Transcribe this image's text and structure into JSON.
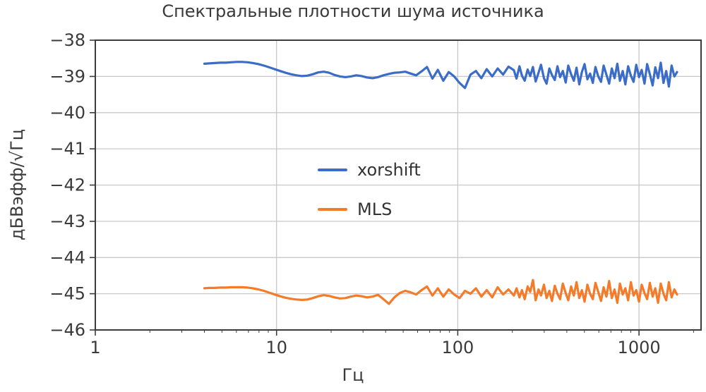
{
  "chart_data": {
    "type": "line",
    "title": "Спектральные плотности шума источника",
    "xlabel": "Гц",
    "ylabel": "дБВэфф/√Гц",
    "xscale": "log",
    "xlim": [
      1,
      2200
    ],
    "ylim": [
      -46,
      -38
    ],
    "grid": true,
    "legend_position": "center",
    "xticks": [
      1,
      10,
      100,
      1000
    ],
    "xtick_labels": [
      "1",
      "10",
      "100",
      "1000"
    ],
    "yticks": [
      -38,
      -39,
      -40,
      -41,
      -42,
      -43,
      -44,
      -45,
      -46
    ],
    "ytick_labels": [
      "−38",
      "−39",
      "−40",
      "−41",
      "−42",
      "−43",
      "−44",
      "−45",
      "−46"
    ],
    "colors": {
      "text": "#3a3a3a",
      "grid": "#c8c8c8",
      "spine": "#3c3c3c",
      "background": "#ffffff"
    },
    "x": [
      4.0,
      4.27,
      4.57,
      4.9,
      5.25,
      5.62,
      6.03,
      6.46,
      6.92,
      7.41,
      7.94,
      8.51,
      9.12,
      9.77,
      10.47,
      11.22,
      12.02,
      12.88,
      13.8,
      14.79,
      15.85,
      16.98,
      18.2,
      19.5,
      20.89,
      22.39,
      23.99,
      25.7,
      27.54,
      29.51,
      31.62,
      33.88,
      36.31,
      38.9,
      41.69,
      44.67,
      47.86,
      51.29,
      54.95,
      58.88,
      63.1,
      67.61,
      72.44,
      77.62,
      83.18,
      89.13,
      95.5,
      102.3,
      109.6,
      117.5,
      125.9,
      134.9,
      144.5,
      154.9,
      166,
      177.8,
      190.5,
      204,
      211,
      219,
      226,
      234,
      243,
      251,
      260,
      269,
      279,
      288,
      299,
      309,
      320,
      331,
      343,
      355,
      367,
      380,
      394,
      407,
      422,
      437,
      452,
      468,
      484,
      501,
      519,
      537,
      556,
      575,
      596,
      617,
      638,
      661,
      684,
      708,
      733,
      759,
      785,
      813,
      841,
      871,
      902,
      933,
      966,
      1000,
      1035,
      1072,
      1109,
      1148,
      1189,
      1230,
      1274,
      1318,
      1365,
      1413,
      1462,
      1514,
      1567,
      1622
    ],
    "series": [
      {
        "name": "xorshift",
        "color": "#3a6cc8",
        "values": [
          -38.65,
          -38.64,
          -38.63,
          -38.62,
          -38.62,
          -38.61,
          -38.6,
          -38.6,
          -38.61,
          -38.63,
          -38.66,
          -38.7,
          -38.75,
          -38.8,
          -38.85,
          -38.9,
          -38.94,
          -38.97,
          -38.99,
          -38.98,
          -38.94,
          -38.89,
          -38.87,
          -38.9,
          -38.96,
          -39.0,
          -39.02,
          -39.0,
          -38.97,
          -38.99,
          -39.03,
          -39.05,
          -39.02,
          -38.97,
          -38.93,
          -38.9,
          -38.89,
          -38.87,
          -38.92,
          -38.97,
          -38.86,
          -38.74,
          -39.06,
          -38.82,
          -39.12,
          -38.88,
          -39.0,
          -39.18,
          -39.32,
          -38.95,
          -38.85,
          -39.05,
          -38.8,
          -39.0,
          -38.78,
          -38.95,
          -38.73,
          -38.83,
          -39.06,
          -38.72,
          -38.98,
          -39.12,
          -38.81,
          -38.99,
          -38.74,
          -39.14,
          -38.9,
          -38.68,
          -39.05,
          -39.2,
          -38.78,
          -38.96,
          -39.1,
          -38.72,
          -39.02,
          -38.85,
          -39.17,
          -38.7,
          -38.94,
          -39.12,
          -38.76,
          -39.22,
          -38.88,
          -38.66,
          -39.08,
          -38.92,
          -39.18,
          -38.74,
          -39.0,
          -39.15,
          -38.7,
          -38.95,
          -39.2,
          -38.78,
          -39.05,
          -38.65,
          -39.12,
          -38.85,
          -39.22,
          -38.72,
          -38.98,
          -39.15,
          -38.68,
          -39.02,
          -38.82,
          -39.2,
          -38.66,
          -38.94,
          -39.25,
          -38.75,
          -39.05,
          -38.62,
          -39.18,
          -38.85,
          -39.28,
          -38.7,
          -39.0,
          -38.88
        ]
      },
      {
        "name": "MLS",
        "color": "#f47b29",
        "values": [
          -44.85,
          -44.84,
          -44.84,
          -44.83,
          -44.83,
          -44.82,
          -44.82,
          -44.82,
          -44.83,
          -44.85,
          -44.88,
          -44.92,
          -44.97,
          -45.02,
          -45.07,
          -45.11,
          -45.14,
          -45.16,
          -45.17,
          -45.16,
          -45.12,
          -45.07,
          -45.04,
          -45.06,
          -45.1,
          -45.13,
          -45.12,
          -45.08,
          -45.05,
          -45.07,
          -45.1,
          -45.08,
          -45.03,
          -45.15,
          -45.28,
          -45.1,
          -44.98,
          -44.92,
          -44.96,
          -45.02,
          -44.9,
          -44.8,
          -45.05,
          -44.85,
          -45.08,
          -44.88,
          -45.02,
          -45.12,
          -44.92,
          -45.0,
          -44.85,
          -45.08,
          -44.9,
          -45.1,
          -44.82,
          -45.02,
          -44.88,
          -45.05,
          -44.85,
          -45.1,
          -44.9,
          -45.15,
          -44.8,
          -44.95,
          -44.62,
          -45.18,
          -44.88,
          -45.05,
          -44.75,
          -45.12,
          -44.92,
          -45.2,
          -44.78,
          -45.0,
          -45.15,
          -44.72,
          -44.98,
          -45.18,
          -44.8,
          -45.05,
          -44.68,
          -45.12,
          -44.9,
          -45.22,
          -44.75,
          -45.0,
          -45.15,
          -44.7,
          -44.95,
          -45.2,
          -44.82,
          -45.08,
          -44.65,
          -45.12,
          -44.88,
          -45.25,
          -44.72,
          -45.02,
          -44.85,
          -45.18,
          -44.68,
          -45.05,
          -44.9,
          -45.22,
          -44.75,
          -44.98,
          -45.15,
          -44.7,
          -45.08,
          -44.85,
          -45.25,
          -44.72,
          -45.0,
          -45.18,
          -44.68,
          -45.1,
          -44.88,
          -45.02
        ]
      }
    ]
  }
}
